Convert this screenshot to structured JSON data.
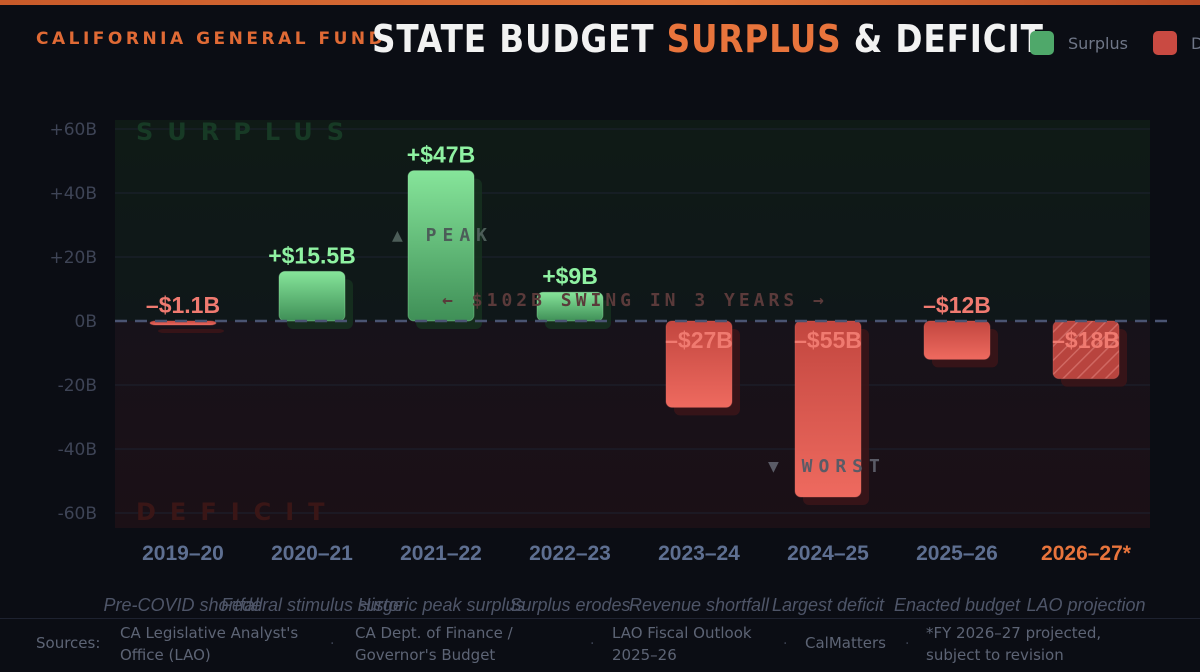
{
  "header": {
    "kicker": "CALIFORNIA GENERAL FUND",
    "title_pre": "STATE BUDGET ",
    "title_accent": "SURPLUS",
    "title_post": " & DEFICIT",
    "legend": [
      {
        "label": "Surplus",
        "color": "#4fa86a"
      },
      {
        "label": "D",
        "color": "#c94a42"
      }
    ]
  },
  "chart_data": {
    "type": "bar",
    "categories": [
      "2019–20",
      "2020–21",
      "2021–22",
      "2022–23",
      "2023–24",
      "2024–25",
      "2025–26",
      "2026–27*"
    ],
    "values": [
      -1.1,
      15.5,
      47,
      9,
      -27,
      -55,
      -12,
      -18
    ],
    "data_labels": [
      "–$1.1B",
      "+$15.5B",
      "+$47B",
      "+$9B",
      "–$27B",
      "–$55B",
      "–$12B",
      "–$18B"
    ],
    "ylim": [
      -60,
      60
    ],
    "yticks": [
      60,
      40,
      20,
      0,
      -20,
      -40,
      -60
    ],
    "ytick_labels": [
      "+60B",
      "+40B",
      "+20B",
      "0B",
      "-20B",
      "-40B",
      "-60B"
    ],
    "projected_category": "2026–27*",
    "captions": [
      "Pre-COVID shortfall",
      "Federal stimulus surge",
      "Historic peak surplus",
      "Surplus erodes",
      "Revenue shortfall",
      "Largest deficit",
      "Enacted budget",
      "LAO projection"
    ],
    "annotations": {
      "peak": "▲ PEAK",
      "worst": "▼ WORST",
      "swing": "← $102B SWING IN 3 YEARS →",
      "surplus_zone": "SURPLUS",
      "deficit_zone": "DEFICIT"
    },
    "colors": {
      "surplus": "#4fa86a",
      "deficit": "#c94a42",
      "projected": "#e8743c"
    },
    "grid": true,
    "legend_position": "top-right"
  },
  "footer": {
    "sources_label": "Sources:",
    "sources": [
      "CA Legislative Analyst's Office (LAO)",
      "CA Dept. of Finance / Governor's Budget",
      "LAO Fiscal Outlook 2025–26",
      "CalMatters",
      "*FY 2026–27 projected, subject to revision"
    ]
  }
}
